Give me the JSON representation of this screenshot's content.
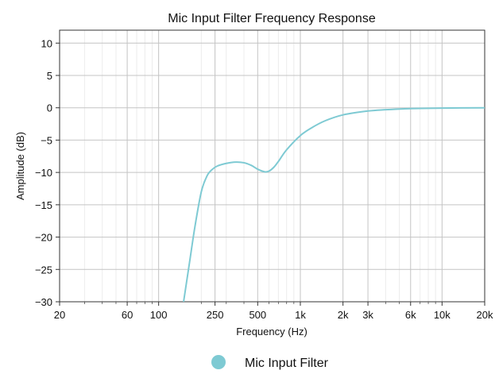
{
  "chart_data": {
    "type": "line",
    "title": "Mic Input Filter Frequency Response",
    "xlabel": "Frequency (Hz)",
    "ylabel": "Amplitude (dB)",
    "xscale": "log",
    "xlim": [
      20,
      20000
    ],
    "ylim": [
      -30,
      12
    ],
    "x_major_ticks": [
      20,
      60,
      100,
      250,
      500,
      1000,
      2000,
      3000,
      6000,
      10000,
      20000
    ],
    "x_tick_labels": [
      "20",
      "60",
      "100",
      "250",
      "500",
      "1k",
      "2k",
      "3k",
      "6k",
      "10k",
      "20k"
    ],
    "y_ticks": [
      10,
      5,
      0,
      -5,
      -10,
      -15,
      -20,
      -25,
      -30
    ],
    "y_tick_labels": [
      "10",
      "5",
      "0",
      "−5",
      "−10",
      "−15",
      "−20",
      "−25",
      "−30"
    ],
    "grid": true,
    "legend_position": "bottom-center",
    "series": [
      {
        "name": "Mic Input Filter",
        "color": "#7ecad3",
        "x": [
          150,
          165,
          180,
          200,
          220,
          240,
          260,
          300,
          350,
          400,
          450,
          500,
          560,
          600,
          650,
          700,
          800,
          1000,
          1200,
          1500,
          2000,
          3000,
          4000,
          6000,
          10000,
          20000
        ],
        "y": [
          -30,
          -24,
          -18.5,
          -13,
          -10.5,
          -9.5,
          -9.0,
          -8.6,
          -8.4,
          -8.5,
          -8.9,
          -9.5,
          -9.9,
          -9.8,
          -9.2,
          -8.3,
          -6.5,
          -4.3,
          -3.1,
          -2.0,
          -1.1,
          -0.5,
          -0.3,
          -0.12,
          -0.05,
          0
        ]
      }
    ]
  }
}
